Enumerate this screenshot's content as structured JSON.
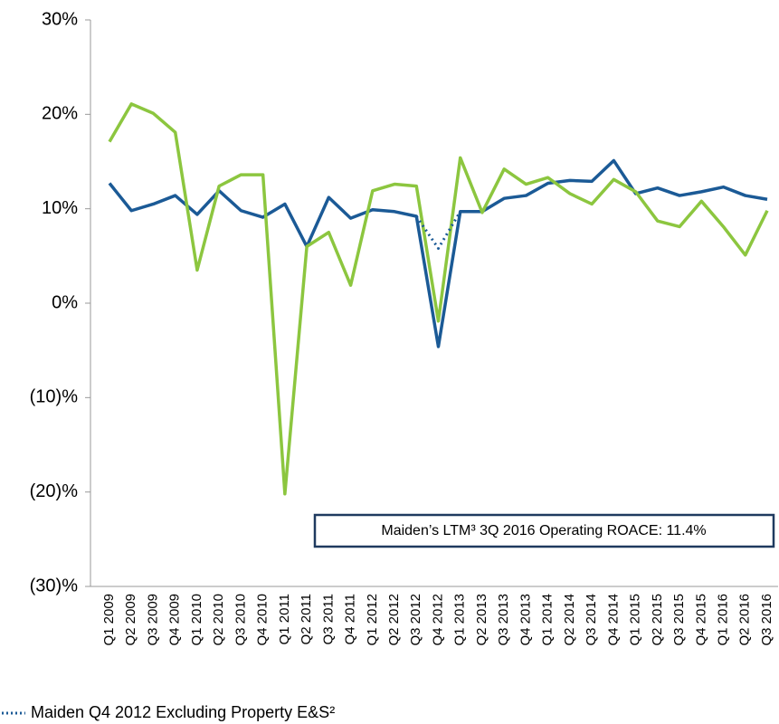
{
  "chart_data": {
    "type": "line",
    "categories": [
      "Q1 2009",
      "Q2 2009",
      "Q3 2009",
      "Q4 2009",
      "Q1 2010",
      "Q2 2010",
      "Q3 2010",
      "Q4 2010",
      "Q1 2011",
      "Q2 2011",
      "Q3 2011",
      "Q4 2011",
      "Q1 2012",
      "Q2 2012",
      "Q3 2012",
      "Q4 2012",
      "Q1 2013",
      "Q2 2013",
      "Q3 2013",
      "Q4 2013",
      "Q1 2014",
      "Q2 2014",
      "Q3 2014",
      "Q4 2014",
      "Q1 2015",
      "Q2 2015",
      "Q3 2015",
      "Q4 2015",
      "Q1 2016",
      "Q2 2016",
      "Q3 2016"
    ],
    "series": [
      {
        "color": "#1b5a96",
        "values": [
          12.7,
          9.8,
          10.5,
          11.4,
          9.4,
          11.9,
          9.8,
          9.1,
          10.5,
          6.0,
          11.2,
          9.0,
          9.9,
          9.7,
          9.2,
          -4.6,
          9.7,
          9.7,
          11.1,
          11.4,
          12.7,
          13.0,
          12.9,
          15.1,
          11.6,
          12.2,
          11.4,
          11.8,
          12.3,
          11.4,
          11.0
        ]
      },
      {
        "color": "#8cc63f",
        "values": [
          17.1,
          21.1,
          20.1,
          18.1,
          3.5,
          12.4,
          13.6,
          13.6,
          -20.2,
          6.0,
          7.5,
          1.9,
          11.9,
          12.6,
          12.4,
          -1.9,
          15.4,
          9.6,
          14.2,
          12.6,
          13.3,
          11.6,
          10.5,
          13.1,
          11.8,
          8.7,
          8.1,
          10.8,
          8.1,
          5.1,
          9.8
        ]
      },
      {
        "name": "Maiden Q4 2012 Excluding Property E&S²",
        "color": "#1b5a96",
        "dashed": true,
        "values": [
          null,
          null,
          null,
          null,
          null,
          null,
          null,
          null,
          null,
          null,
          null,
          null,
          null,
          null,
          9.2,
          5.8,
          9.7,
          null,
          null,
          null,
          null,
          null,
          null,
          null,
          null,
          null,
          null,
          null,
          null,
          null,
          null
        ]
      }
    ],
    "ylim": [
      -30,
      30
    ],
    "yticks": [
      {
        "value": -30,
        "label": "(30)%"
      },
      {
        "value": -20,
        "label": "(20)%"
      },
      {
        "value": -10,
        "label": "(10)%"
      },
      {
        "value": 0,
        "label": "0%"
      },
      {
        "value": 10,
        "label": "10%"
      },
      {
        "value": 20,
        "label": "20%"
      },
      {
        "value": 30,
        "label": "30%"
      }
    ],
    "annotation": "Maiden’s LTM³ 3Q 2016 Operating ROACE: 11.4%",
    "legend": "bottom-left"
  }
}
